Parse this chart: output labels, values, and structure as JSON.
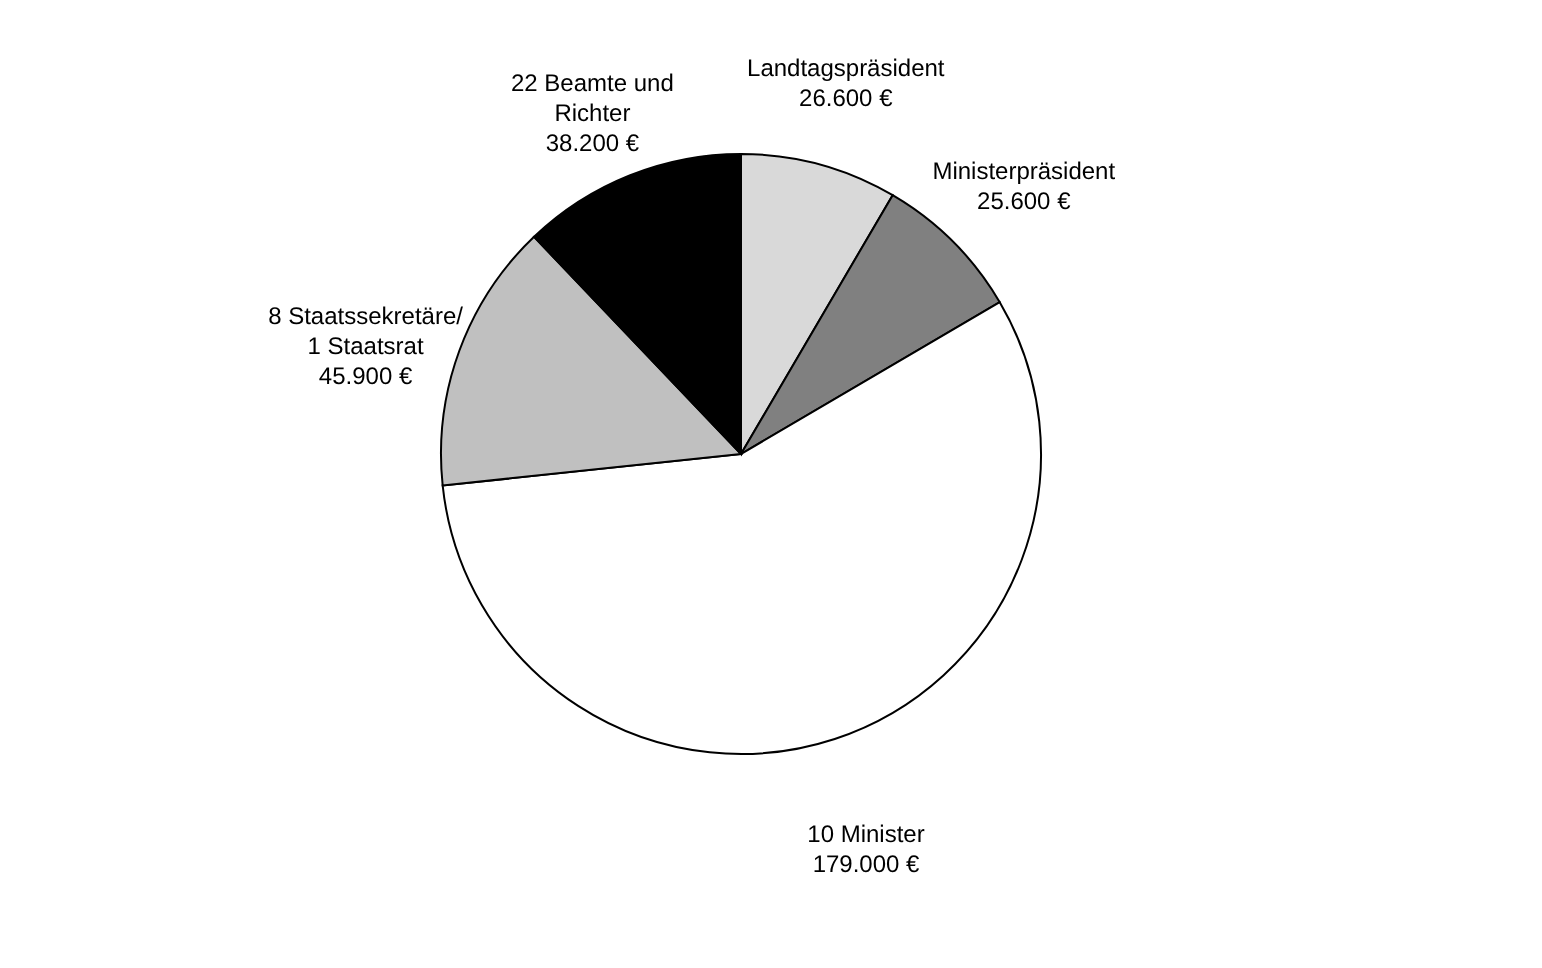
{
  "chart_data": {
    "type": "pie",
    "categories": [
      "Landtagspräsident",
      "Ministerpräsident",
      "10 Minister",
      "8 Staatssekretäre/\n1 Staatsrat",
      "22 Beamte und\nRichter"
    ],
    "values": [
      26600,
      25600,
      179000,
      45900,
      38200
    ],
    "value_labels": [
      "26.600 €",
      "25.600 €",
      "179.000 €",
      "45.900 €",
      "38.200 €"
    ],
    "colors": [
      "#d9d9d9",
      "#808080",
      "#ffffff",
      "#c0c0c0",
      "#000000"
    ],
    "legend": false
  }
}
